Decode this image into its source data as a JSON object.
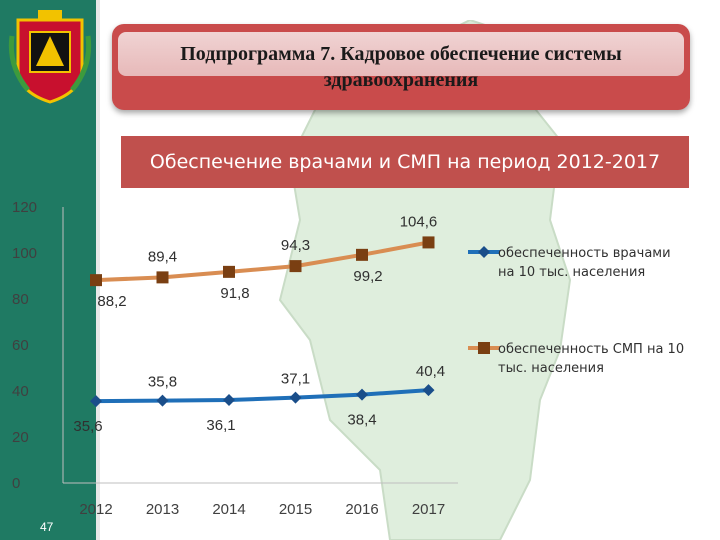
{
  "slide": {
    "title": "Подпрограмма 7. Кадровое обеспечение системы здравоохранения",
    "subtitle": "Обеспечение врачами и СМП на период 2012-2017",
    "page_number": "47"
  },
  "colors": {
    "sidebar": "#1f7a63",
    "title_box": "#c94b4b",
    "banner": "#c0504d",
    "doctors": "#1f6fb8",
    "nurses": "#d98d52"
  },
  "chart_data": {
    "type": "line",
    "categories": [
      "2012",
      "2013",
      "2014",
      "2015",
      "2016",
      "2017"
    ],
    "ylim": [
      0,
      120
    ],
    "yticks": [
      "0",
      "20",
      "40",
      "60",
      "80",
      "100",
      "120"
    ],
    "grid": false,
    "legend_position": "right",
    "series": [
      {
        "name": "обеспеченность врачами на 10 тыс. населения",
        "legend_lines": [
          "обеспеченность врачами",
          "на 10 тыс. населения"
        ],
        "values": [
          35.6,
          35.8,
          36.1,
          37.1,
          38.4,
          40.4
        ],
        "labels": [
          "35,6",
          "35,8",
          "36,1",
          "37,1",
          "38,4",
          "40,4"
        ],
        "color": "#1f6fb8",
        "marker": "diamond"
      },
      {
        "name": "обеспеченность СМП на 10 тыс. населения",
        "legend_lines": [
          "обеспеченность СМП на 10",
          "тыс. населения"
        ],
        "values": [
          88.2,
          89.4,
          91.8,
          94.3,
          99.2,
          104.6
        ],
        "labels": [
          "88,2",
          "89,4",
          "91,8",
          "94,3",
          "99,2",
          "104,6"
        ],
        "color": "#d98d52",
        "marker": "square"
      }
    ]
  }
}
